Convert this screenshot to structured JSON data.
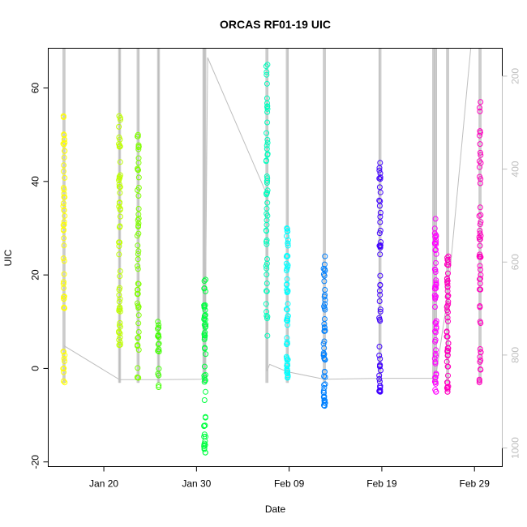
{
  "chart_data": {
    "type": "scatter",
    "title": "ORCAS RF01-19 UIC",
    "xlabel": "Date",
    "ylabel": "UIC",
    "x_range": [
      "2016-01-14",
      "2016-03-03"
    ],
    "y_range": [
      -21,
      68.5
    ],
    "y_ticks": [
      -20,
      0,
      20,
      40,
      60
    ],
    "x_ticks": [
      {
        "date": "2016-01-20",
        "label": "Jan 20"
      },
      {
        "date": "2016-01-30",
        "label": "Jan 30"
      },
      {
        "date": "2016-02-09",
        "label": "Feb 09"
      },
      {
        "date": "2016-02-19",
        "label": "Feb 19"
      },
      {
        "date": "2016-02-29",
        "label": "Feb 29"
      }
    ],
    "right_axis": {
      "range": [
        1040,
        140
      ],
      "ticks": [
        200,
        400,
        600,
        800,
        1000
      ],
      "color": "#bebebe"
    },
    "grid": false,
    "marker": "open-circle",
    "flights": [
      {
        "date": "2016-01-15.7",
        "color": "#FFFF00",
        "range": [
          -3,
          54
        ],
        "n": 55,
        "vlines": [
          "2016-01-15.7"
        ]
      },
      {
        "date": "2016-01-21.7",
        "color": "#BFFF00",
        "range": [
          5,
          54
        ],
        "n": 55,
        "vlines": [
          "2016-01-21.7"
        ]
      },
      {
        "date": "2016-01-23.7",
        "color": "#80FF00",
        "range": [
          -2,
          50
        ],
        "n": 55,
        "vlines": [
          "2016-01-23.7"
        ]
      },
      {
        "date": "2016-01-25.9",
        "color": "#40FF00",
        "range": [
          -4,
          10
        ],
        "n": 18,
        "vlines": [
          "2016-01-25.9"
        ]
      },
      {
        "date": "2016-01-30.9",
        "color": "#00FF40",
        "range": [
          -18,
          19
        ],
        "n": 55,
        "vlines": [
          "2016-01-30.8",
          "2016-01-30.9"
        ]
      },
      {
        "date": "2016-02-06.6",
        "color": "#00FFBF",
        "range": [
          7,
          65
        ],
        "n": 55,
        "vlines": [
          "2016-02-06.6"
        ]
      },
      {
        "date": "2016-02-08.8",
        "color": "#00FFFF",
        "range": [
          -2,
          30
        ],
        "n": 55,
        "vlines": [
          "2016-02-08.8"
        ]
      },
      {
        "date": "2016-02-12.8",
        "color": "#0080FF",
        "range": [
          -8,
          24
        ],
        "n": 55,
        "vlines": [
          "2016-02-12.8"
        ]
      },
      {
        "date": "2016-02-18.8",
        "color": "#4000FF",
        "range": [
          -5,
          44
        ],
        "n": 55,
        "vlines": [
          "2016-02-18.8"
        ]
      },
      {
        "date": "2016-02-24.8",
        "color": "#FF00FF",
        "range": [
          -5,
          32
        ],
        "n": 55,
        "vlines": [
          "2016-02-24.6",
          "2016-02-24.8"
        ]
      },
      {
        "date": "2016-02-26.1",
        "color": "#FF00BF",
        "range": [
          -5,
          24
        ],
        "n": 55,
        "vlines": [
          "2016-02-26.1"
        ]
      },
      {
        "date": "2016-02-29.6",
        "color": "#FF00BF",
        "range": [
          -3,
          57
        ],
        "n": 55,
        "vlines": [
          "2016-02-29.6"
        ]
      }
    ],
    "pressure_line": {
      "color": "#bebebe",
      "points": [
        [
          "2016-01-15.7",
          780
        ],
        [
          "2016-01-21.7",
          853
        ],
        [
          "2016-01-23.7",
          853
        ],
        [
          "2016-01-25.9",
          853
        ],
        [
          "2016-01-30.9",
          852
        ],
        [
          "2016-01-31.2",
          160
        ],
        [
          "2016-02-06.6",
          455
        ],
        [
          "2016-02-06.6",
          835
        ],
        [
          "2016-02-06.9",
          820
        ],
        [
          "2016-02-08.8",
          836
        ],
        [
          "2016-02-12.8",
          852
        ],
        [
          "2016-02-18.8",
          850
        ],
        [
          "2016-02-24.8",
          850
        ],
        [
          "2016-02-26.1",
          675
        ],
        [
          "2016-02-28.6",
          140
        ]
      ]
    }
  }
}
